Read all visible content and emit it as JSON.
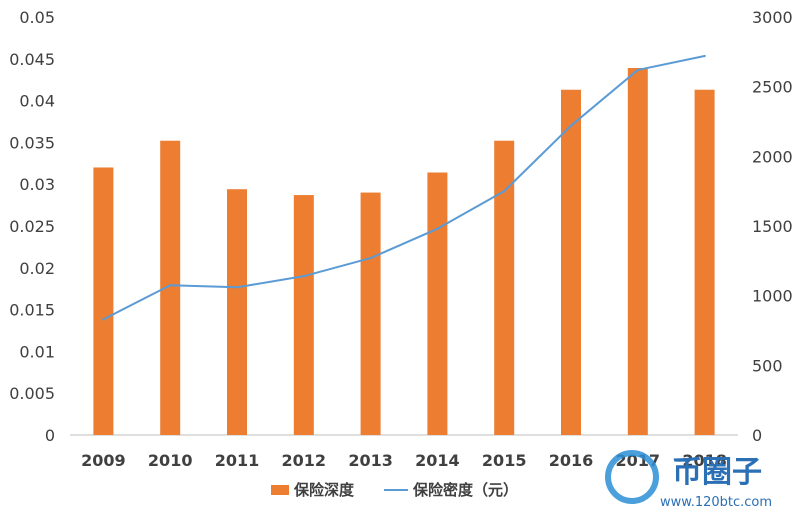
{
  "chart_data": {
    "type": "bar",
    "categories": [
      "2009",
      "2010",
      "2011",
      "2012",
      "2013",
      "2014",
      "2015",
      "2016",
      "2017",
      "2018"
    ],
    "series": [
      {
        "name": "保险深度",
        "type": "bar",
        "axis": "left",
        "color": "#ed7d31",
        "values": [
          0.032,
          0.0352,
          0.0294,
          0.0287,
          0.029,
          0.0314,
          0.0352,
          0.0413,
          0.0439,
          0.0413
        ]
      },
      {
        "name": "保险密度（元）",
        "type": "line",
        "axis": "right",
        "color": "#5b9bd5",
        "values": [
          830,
          1075,
          1060,
          1140,
          1270,
          1480,
          1750,
          2220,
          2620,
          2720
        ]
      }
    ],
    "y_left": {
      "ylim": [
        0,
        0.05
      ],
      "ticks": [
        "0",
        "0.005",
        "0.01",
        "0.015",
        "0.02",
        "0.025",
        "0.03",
        "0.035",
        "0.04",
        "0.045",
        "0.05"
      ]
    },
    "y_right": {
      "ylim": [
        0,
        3000
      ],
      "ticks": [
        "0",
        "500",
        "1000",
        "1500",
        "2000",
        "2500",
        "3000"
      ]
    },
    "title": "",
    "xlabel": "",
    "grid": false,
    "legend_position": "bottom"
  },
  "watermark": {
    "brand": "币圈子",
    "url": "www.120btc.com"
  }
}
